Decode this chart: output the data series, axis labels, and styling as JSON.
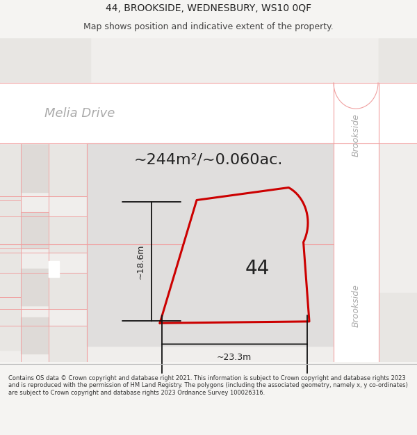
{
  "title_line1": "44, BROOKSIDE, WEDNESBURY, WS10 0QF",
  "title_line2": "Map shows position and indicative extent of the property.",
  "area_text": "~244m²/~0.060ac.",
  "number_label": "44",
  "dim_height": "~18.6m",
  "dim_width": "~23.3m",
  "street_name_top": "Brookside",
  "street_name_bottom": "Brookside",
  "street_name_left": "Melia Drive",
  "footer_text": "Contains OS data © Crown copyright and database right 2021. This information is subject to Crown copyright and database rights 2023 and is reproduced with the permission of HM Land Registry. The polygons (including the associated geometry, namely x, y co-ordinates) are subject to Crown copyright and database rights 2023 Ordnance Survey 100026316.",
  "bg_color": "#f5f4f2",
  "map_bg": "#f0eeec",
  "road_fill": "#ffffff",
  "block_fill": "#e8e6e3",
  "block_fill2": "#dedad7",
  "plot_fill": "#e0dedd",
  "plot_edge": "#cc0000",
  "road_line_color": "#f0a0a0",
  "road_line_color2": "#d08080",
  "dim_line_color": "#111111",
  "text_dark": "#222222",
  "text_gray": "#aaaaaa",
  "footer_bg": "#ffffff",
  "title_fs": 10,
  "subtitle_fs": 9,
  "area_fs": 16,
  "label_fs": 20,
  "dim_fs": 9,
  "street_fs": 9,
  "melia_fs": 13,
  "footer_fs": 6
}
